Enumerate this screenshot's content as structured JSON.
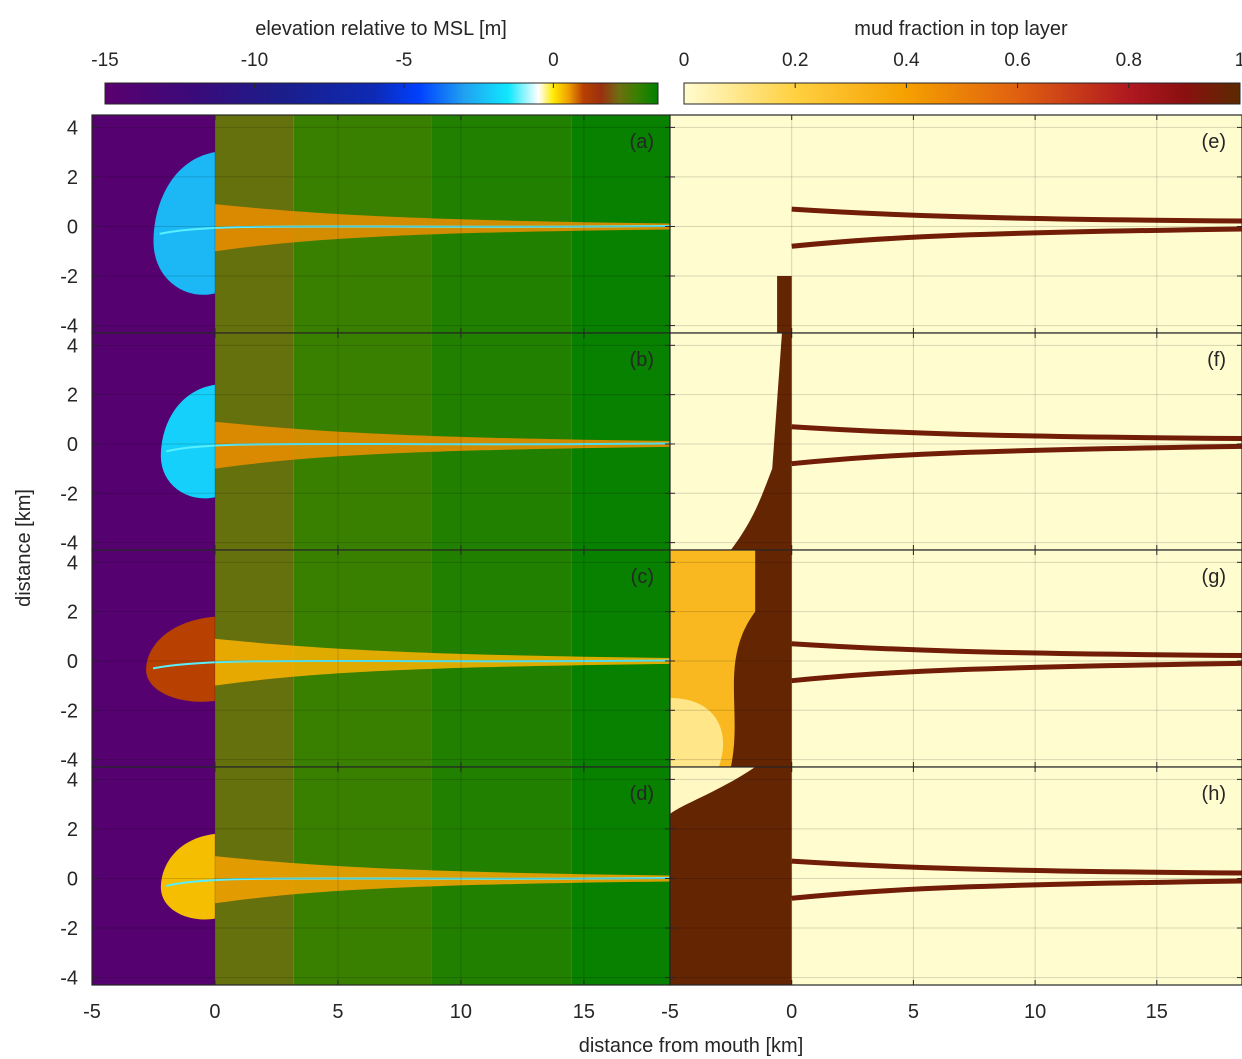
{
  "figure": {
    "xlabel": "distance from mouth [km]",
    "ylabel": "distance [km]"
  },
  "colorbars": {
    "elevation": {
      "label": "elevation relative to MSL [m]",
      "ticks": [
        "-15",
        "-10",
        "-5",
        "0"
      ],
      "tick_values": [
        -15,
        -10,
        -5,
        0
      ],
      "range": [
        -15,
        3.5
      ],
      "stops": [
        {
          "v": -15,
          "c": "#5a006e"
        },
        {
          "v": -12,
          "c": "#3a0a7a"
        },
        {
          "v": -9,
          "c": "#1a1e8c"
        },
        {
          "v": -6,
          "c": "#0e2ab4"
        },
        {
          "v": -4.5,
          "c": "#0040ff"
        },
        {
          "v": -3,
          "c": "#20a0f0"
        },
        {
          "v": -1.5,
          "c": "#10e8ff"
        },
        {
          "v": -0.5,
          "c": "#ffffff"
        },
        {
          "v": 0,
          "c": "#ffea00"
        },
        {
          "v": 0.5,
          "c": "#f0a000"
        },
        {
          "v": 1.0,
          "c": "#b84000"
        },
        {
          "v": 1.6,
          "c": "#9a3010"
        },
        {
          "v": 2.2,
          "c": "#6e6e10"
        },
        {
          "v": 2.8,
          "c": "#3a8000"
        },
        {
          "v": 3.5,
          "c": "#008000"
        }
      ]
    },
    "mud": {
      "label": "mud fraction in top layer",
      "ticks": [
        "0",
        "0.2",
        "0.4",
        "0.6",
        "0.8",
        "1"
      ],
      "tick_values": [
        0,
        0.2,
        0.4,
        0.6,
        0.8,
        1
      ],
      "range": [
        0,
        1
      ],
      "stops": [
        {
          "v": 0,
          "c": "#fffcd0"
        },
        {
          "v": 0.2,
          "c": "#ffd040"
        },
        {
          "v": 0.4,
          "c": "#f5a000"
        },
        {
          "v": 0.6,
          "c": "#e06010"
        },
        {
          "v": 0.8,
          "c": "#b01820"
        },
        {
          "v": 0.9,
          "c": "#8a1010"
        },
        {
          "v": 1.0,
          "c": "#5a2a00"
        }
      ]
    }
  },
  "chart_data": [
    {
      "type": "heatmap",
      "panel": "(a)",
      "variable": "elevation relative to MSL [m]",
      "xlim": [
        -5,
        18.5
      ],
      "ylim": [
        -4.3,
        4.5
      ],
      "xticks": [
        "-5",
        "0",
        "5",
        "10",
        "15"
      ],
      "xtick_values": [
        -5,
        0,
        5,
        10,
        15
      ],
      "yticks": [
        "4",
        "2",
        "0",
        "-2",
        "-4"
      ],
      "ytick_values": [
        4,
        2,
        0,
        -2,
        -4
      ],
      "sea_elevation": -14.5,
      "mouth_x": 0,
      "land_bands": [
        {
          "from": 0,
          "to": 3.2,
          "elev": 2.3
        },
        {
          "from": 3.2,
          "to": 8.8,
          "elev": 2.8
        },
        {
          "from": 8.8,
          "to": 14.5,
          "elev": 3.1
        },
        {
          "from": 14.5,
          "to": 18.5,
          "elev": 3.4
        }
      ],
      "delta_extent_km": 2.5,
      "delta_half_width_km": 3.0,
      "delta_elevation": -2.5,
      "channel_elevation": 0.6
    },
    {
      "type": "heatmap",
      "panel": "(b)",
      "variable": "elevation relative to MSL [m]",
      "xlim": [
        -5,
        18.5
      ],
      "ylim": [
        -4.3,
        4.5
      ],
      "xticks": [
        "-5",
        "0",
        "5",
        "10",
        "15"
      ],
      "xtick_values": [
        -5,
        0,
        5,
        10,
        15
      ],
      "yticks": [
        "4",
        "2",
        "0",
        "-2",
        "-4"
      ],
      "ytick_values": [
        4,
        2,
        0,
        -2,
        -4
      ],
      "sea_elevation": -14.5,
      "mouth_x": 0,
      "land_bands": [
        {
          "from": 0,
          "to": 3.2,
          "elev": 2.3
        },
        {
          "from": 3.2,
          "to": 8.8,
          "elev": 2.8
        },
        {
          "from": 8.8,
          "to": 14.5,
          "elev": 3.1
        },
        {
          "from": 14.5,
          "to": 18.5,
          "elev": 3.4
        }
      ],
      "delta_extent_km": 2.2,
      "delta_half_width_km": 2.4,
      "delta_elevation": -2.0,
      "channel_elevation": 0.6
    },
    {
      "type": "heatmap",
      "panel": "(c)",
      "variable": "elevation relative to MSL [m]",
      "xlim": [
        -5,
        18.5
      ],
      "ylim": [
        -4.3,
        4.5
      ],
      "xticks": [
        "-5",
        "0",
        "5",
        "10",
        "15"
      ],
      "xtick_values": [
        -5,
        0,
        5,
        10,
        15
      ],
      "yticks": [
        "4",
        "2",
        "0",
        "-2",
        "-4"
      ],
      "ytick_values": [
        4,
        2,
        0,
        -2,
        -4
      ],
      "sea_elevation": -14.5,
      "mouth_x": 0,
      "land_bands": [
        {
          "from": 0,
          "to": 3.2,
          "elev": 2.3
        },
        {
          "from": 3.2,
          "to": 8.8,
          "elev": 2.8
        },
        {
          "from": 8.8,
          "to": 14.5,
          "elev": 3.1
        },
        {
          "from": 14.5,
          "to": 18.5,
          "elev": 3.4
        }
      ],
      "delta_extent_km": 2.8,
      "delta_half_width_km": 1.8,
      "delta_elevation": 1.0,
      "channel_elevation": 0.4
    },
    {
      "type": "heatmap",
      "panel": "(d)",
      "variable": "elevation relative to MSL [m]",
      "xlim": [
        -5,
        18.5
      ],
      "ylim": [
        -4.3,
        4.5
      ],
      "xticks": [
        "-5",
        "0",
        "5",
        "10",
        "15"
      ],
      "xtick_values": [
        -5,
        0,
        5,
        10,
        15
      ],
      "yticks": [
        "4",
        "2",
        "0",
        "-2",
        "-4"
      ],
      "ytick_values": [
        4,
        2,
        0,
        -2,
        -4
      ],
      "sea_elevation": -14.5,
      "mouth_x": 0,
      "land_bands": [
        {
          "from": 0,
          "to": 3.2,
          "elev": 2.3
        },
        {
          "from": 3.2,
          "to": 8.8,
          "elev": 2.8
        },
        {
          "from": 8.8,
          "to": 14.5,
          "elev": 3.1
        },
        {
          "from": 14.5,
          "to": 18.5,
          "elev": 3.4
        }
      ],
      "delta_extent_km": 2.2,
      "delta_half_width_km": 1.8,
      "delta_elevation": 0.3,
      "channel_elevation": 0.5
    },
    {
      "type": "heatmap",
      "panel": "(e)",
      "variable": "mud fraction in top layer",
      "xlim": [
        -5,
        18.5
      ],
      "ylim": [
        -4.3,
        4.5
      ],
      "xticks": [
        "-5",
        "0",
        "5",
        "10",
        "15"
      ],
      "xtick_values": [
        -5,
        0,
        5,
        10,
        15
      ],
      "yticks": [],
      "ytick_values": [
        4,
        2,
        0,
        -2,
        -4
      ],
      "background_mud": 0.0,
      "offshore_mud": 0.02,
      "bank_mud": 0.95,
      "offshore_patch": "narrow-strip"
    },
    {
      "type": "heatmap",
      "panel": "(f)",
      "variable": "mud fraction in top layer",
      "xlim": [
        -5,
        18.5
      ],
      "ylim": [
        -4.3,
        4.5
      ],
      "xticks": [
        "-5",
        "0",
        "5",
        "10",
        "15"
      ],
      "xtick_values": [
        -5,
        0,
        5,
        10,
        15
      ],
      "yticks": [],
      "ytick_values": [
        4,
        2,
        0,
        -2,
        -4
      ],
      "background_mud": 0.0,
      "offshore_mud": 0.05,
      "bank_mud": 0.95,
      "offshore_patch": "strip-lobe"
    },
    {
      "type": "heatmap",
      "panel": "(g)",
      "variable": "mud fraction in top layer",
      "xlim": [
        -5,
        18.5
      ],
      "ylim": [
        -4.3,
        4.5
      ],
      "xticks": [
        "-5",
        "0",
        "5",
        "10",
        "15"
      ],
      "xtick_values": [
        -5,
        0,
        5,
        10,
        15
      ],
      "yticks": [],
      "ytick_values": [
        4,
        2,
        0,
        -2,
        -4
      ],
      "background_mud": 0.0,
      "offshore_mud": 0.5,
      "bank_mud": 0.95,
      "offshore_patch": "wide-gradient"
    },
    {
      "type": "heatmap",
      "panel": "(h)",
      "variable": "mud fraction in top layer",
      "xlim": [
        -5,
        18.5
      ],
      "ylim": [
        -4.3,
        4.5
      ],
      "xticks": [
        "-5",
        "0",
        "5",
        "10",
        "15"
      ],
      "xtick_values": [
        -5,
        0,
        5,
        10,
        15
      ],
      "yticks": [],
      "ytick_values": [
        4,
        2,
        0,
        -2,
        -4
      ],
      "background_mud": 0.0,
      "offshore_mud": 0.98,
      "bank_mud": 0.95,
      "offshore_patch": "radial"
    }
  ]
}
